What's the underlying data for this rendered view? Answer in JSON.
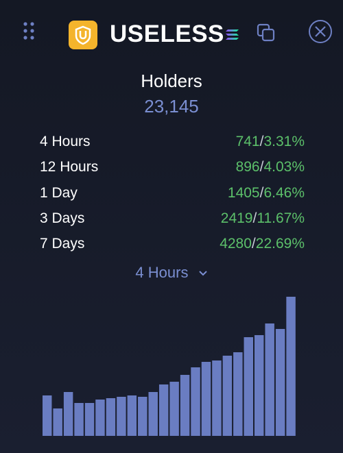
{
  "header": {
    "title": "USELESS"
  },
  "stats": {
    "title": "Holders",
    "total": "23,145",
    "separator": "/",
    "rows": [
      {
        "label": "4 Hours",
        "count": "741",
        "percent": "3.31%"
      },
      {
        "label": "12 Hours",
        "count": "896",
        "percent": "4.03%"
      },
      {
        "label": "1 Day",
        "count": "1405",
        "percent": "6.46%"
      },
      {
        "label": "3 Days",
        "count": "2419",
        "percent": "11.67%"
      },
      {
        "label": "7 Days",
        "count": "4280",
        "percent": "22.69%"
      }
    ]
  },
  "selector": {
    "label": "4 Hours"
  },
  "chart_data": {
    "type": "bar",
    "color": "#6a7dc2",
    "values": [
      59,
      40,
      64,
      48,
      48,
      53,
      55,
      57,
      59,
      57,
      64,
      75,
      79,
      89,
      100,
      108,
      110,
      117,
      122,
      144,
      147,
      164,
      156,
      203
    ]
  }
}
